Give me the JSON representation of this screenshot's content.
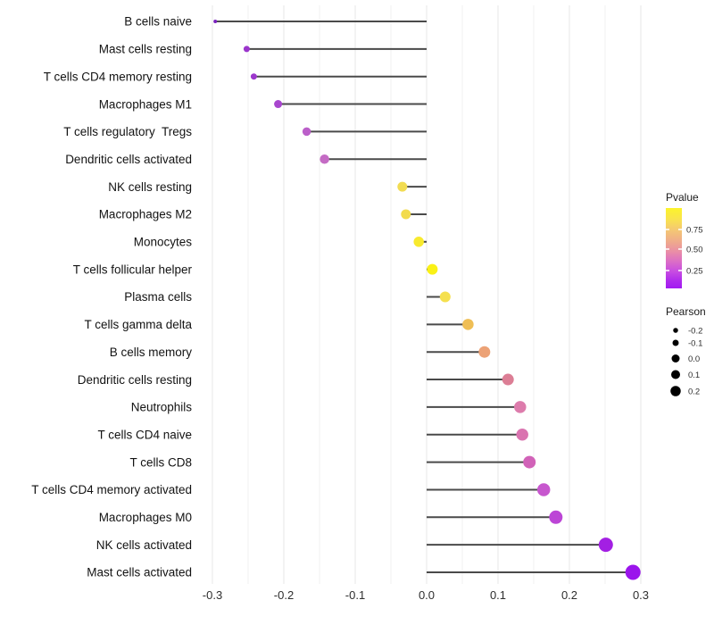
{
  "chart_data": {
    "type": "scatter",
    "variant": "horizontal-lollipop",
    "x_tick_labels": [
      "-0.3",
      "-0.2",
      "-0.1",
      "0.0",
      "0.1",
      "0.2",
      "0.3"
    ],
    "x_tick_values": [
      -0.3,
      -0.2,
      -0.1,
      0.0,
      0.1,
      0.2,
      0.3
    ],
    "xlim": [
      -0.335,
      0.315
    ],
    "grid": "vertical gridlines every 0.05, no horizontal gridlines",
    "categories": [
      "B cells naive",
      "Mast cells resting",
      "T cells CD4 memory resting",
      "Macrophages M1",
      "T cells regulatory  Tregs",
      "Dendritic cells activated",
      "NK cells resting",
      "Macrophages M2",
      "Monocytes",
      "T cells follicular helper",
      "Plasma cells",
      "T cells gamma delta",
      "B cells memory",
      "Dendritic cells resting",
      "Neutrophils",
      "T cells CD4 naive",
      "T cells CD8",
      "T cells CD4 memory activated",
      "Macrophages M0",
      "NK cells activated",
      "Mast cells activated"
    ],
    "points": [
      {
        "label": "B cells naive",
        "pearson": -0.296,
        "color": "#7A22BE",
        "diameter": 4
      },
      {
        "label": "Mast cells resting",
        "pearson": -0.252,
        "color": "#9B35CC",
        "diameter": 7
      },
      {
        "label": "T cells CD4 memory resting",
        "pearson": -0.242,
        "color": "#9C38CC",
        "diameter": 7
      },
      {
        "label": "Macrophages M1",
        "pearson": -0.208,
        "color": "#A846CE",
        "diameter": 9
      },
      {
        "label": "T cells regulatory  Tregs",
        "pearson": -0.168,
        "color": "#BB5FC9",
        "diameter": 9.5
      },
      {
        "label": "Dendritic cells activated",
        "pearson": -0.143,
        "color": "#C46BC4",
        "diameter": 10.5
      },
      {
        "label": "NK cells resting",
        "pearson": -0.034,
        "color": "#F2DC52",
        "diameter": 11
      },
      {
        "label": "Macrophages M2",
        "pearson": -0.029,
        "color": "#F2DB4C",
        "diameter": 11
      },
      {
        "label": "Monocytes",
        "pearson": -0.011,
        "color": "#F8EA2E",
        "diameter": 11.5
      },
      {
        "label": "T cells follicular helper",
        "pearson": 0.008,
        "color": "#FAF116",
        "diameter": 12
      },
      {
        "label": "Plasma cells",
        "pearson": 0.026,
        "color": "#F5E04E",
        "diameter": 12
      },
      {
        "label": "T cells gamma delta",
        "pearson": 0.058,
        "color": "#EFBE55",
        "diameter": 12.5
      },
      {
        "label": "B cells memory",
        "pearson": 0.081,
        "color": "#ECA276",
        "diameter": 13
      },
      {
        "label": "Dendritic cells resting",
        "pearson": 0.114,
        "color": "#DC7E95",
        "diameter": 13
      },
      {
        "label": "Neutrophils",
        "pearson": 0.131,
        "color": "#DD7CAC",
        "diameter": 13.5
      },
      {
        "label": "T cells CD4 naive",
        "pearson": 0.134,
        "color": "#DA74B0",
        "diameter": 13.5
      },
      {
        "label": "T cells CD8",
        "pearson": 0.144,
        "color": "#D162B8",
        "diameter": 14
      },
      {
        "label": "T cells CD4 memory activated",
        "pearson": 0.164,
        "color": "#C757CE",
        "diameter": 14.5
      },
      {
        "label": "Macrophages M0",
        "pearson": 0.181,
        "color": "#BC45D6",
        "diameter": 15
      },
      {
        "label": "NK cells activated",
        "pearson": 0.251,
        "color": "#A31FE3",
        "diameter": 16
      },
      {
        "label": "Mast cells activated",
        "pearson": 0.289,
        "color": "#9B15EC",
        "diameter": 17
      }
    ],
    "legend": {
      "pvalue": {
        "title": "Pvalue",
        "tick_labels": [
          "0.75",
          "0.50",
          "0.25"
        ],
        "gradient_top_to_bottom": [
          {
            "o": 0.0,
            "c": "#FCF42A"
          },
          {
            "o": 0.14,
            "c": "#F9E34E"
          },
          {
            "o": 0.27,
            "c": "#F4C873"
          },
          {
            "o": 0.42,
            "c": "#EFAA8C"
          },
          {
            "o": 0.55,
            "c": "#E98CA8"
          },
          {
            "o": 0.66,
            "c": "#DC6FC5"
          },
          {
            "o": 0.78,
            "c": "#C94FE0"
          },
          {
            "o": 0.9,
            "c": "#B02CEC"
          },
          {
            "o": 1.0,
            "c": "#A21AF2"
          }
        ]
      },
      "pearson": {
        "title": "Pearson",
        "items": [
          {
            "label": "-0.2",
            "diameter": 5.5
          },
          {
            "label": "-0.1",
            "diameter": 7
          },
          {
            "label": "0.0",
            "diameter": 9
          },
          {
            "label": "0.1",
            "diameter": 10
          },
          {
            "label": "0.2",
            "diameter": 11.5
          }
        ],
        "circle_color": "#000000"
      }
    },
    "style": {
      "background": "#ffffff",
      "stem_color": "#4A4A4A",
      "grid_color_major": "#E7E7E7",
      "grid_color_minor": "#F0F0F0",
      "axis_text_color": "#2E2E2E",
      "category_text_color": "#131313",
      "legend_text_color": "#2E2E2E"
    }
  }
}
